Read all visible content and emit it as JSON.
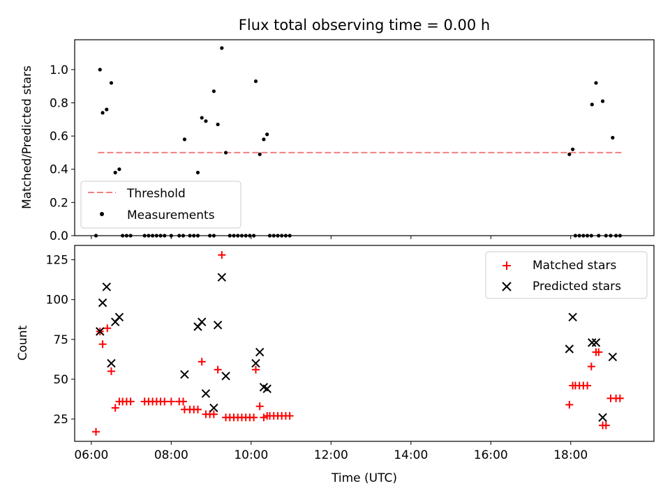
{
  "chart_data": [
    {
      "type": "scatter",
      "title": "Flux total observing time = 0.00 h",
      "xlabel": "",
      "ylabel": "Matched/Predicted stars",
      "xlim": [
        "05:35",
        "20:05"
      ],
      "ylim": [
        0,
        1.18
      ],
      "yticks": [
        0.0,
        0.2,
        0.4,
        0.6,
        0.8,
        1.0
      ],
      "ytick_labels": [
        "0.0",
        "0.2",
        "0.4",
        "0.6",
        "0.8",
        "1.0"
      ],
      "legend": {
        "placement": "lower-left",
        "entries": [
          "Threshold",
          "Measurements"
        ]
      },
      "threshold": {
        "name": "Threshold",
        "value": 0.5,
        "x_range": [
          "06:10",
          "19:20"
        ],
        "color": "#f08080",
        "style": "dashed"
      },
      "measurements": {
        "name": "Measurements",
        "color": "#000000",
        "points": [
          [
            "06:07",
            0.0
          ],
          [
            "06:13",
            1.0
          ],
          [
            "06:17",
            0.74
          ],
          [
            "06:23",
            0.76
          ],
          [
            "06:30",
            0.92
          ],
          [
            "06:36",
            0.38
          ],
          [
            "06:42",
            0.4
          ],
          [
            "06:47",
            0.0
          ],
          [
            "06:53",
            0.0
          ],
          [
            "06:59",
            0.0
          ],
          [
            "07:20",
            0.0
          ],
          [
            "07:26",
            0.0
          ],
          [
            "07:32",
            0.0
          ],
          [
            "07:38",
            0.0
          ],
          [
            "07:44",
            0.0
          ],
          [
            "07:50",
            0.0
          ],
          [
            "08:00",
            0.0
          ],
          [
            "08:12",
            0.0
          ],
          [
            "08:18",
            0.0
          ],
          [
            "08:20",
            0.58
          ],
          [
            "08:28",
            0.0
          ],
          [
            "08:34",
            0.0
          ],
          [
            "08:40",
            0.0
          ],
          [
            "08:40",
            0.38
          ],
          [
            "08:46",
            0.71
          ],
          [
            "08:52",
            0.69
          ],
          [
            "08:58",
            0.0
          ],
          [
            "09:04",
            0.0
          ],
          [
            "09:04",
            0.87
          ],
          [
            "09:10",
            0.67
          ],
          [
            "09:16",
            1.13
          ],
          [
            "09:22",
            0.5
          ],
          [
            "09:28",
            0.0
          ],
          [
            "09:34",
            0.0
          ],
          [
            "09:40",
            0.0
          ],
          [
            "09:46",
            0.0
          ],
          [
            "09:52",
            0.0
          ],
          [
            "09:58",
            0.0
          ],
          [
            "10:04",
            0.0
          ],
          [
            "10:07",
            0.93
          ],
          [
            "10:13",
            0.49
          ],
          [
            "10:19",
            0.58
          ],
          [
            "10:24",
            0.61
          ],
          [
            "10:28",
            0.0
          ],
          [
            "10:34",
            0.0
          ],
          [
            "10:40",
            0.0
          ],
          [
            "10:46",
            0.0
          ],
          [
            "10:52",
            0.0
          ],
          [
            "10:58",
            0.0
          ],
          [
            "17:58",
            0.49
          ],
          [
            "18:03",
            0.52
          ],
          [
            "18:07",
            0.0
          ],
          [
            "18:13",
            0.0
          ],
          [
            "18:19",
            0.0
          ],
          [
            "18:25",
            0.0
          ],
          [
            "18:31",
            0.0
          ],
          [
            "18:32",
            0.79
          ],
          [
            "18:38",
            0.92
          ],
          [
            "18:42",
            0.0
          ],
          [
            "18:48",
            0.81
          ],
          [
            "18:53",
            0.0
          ],
          [
            "19:00",
            0.0
          ],
          [
            "19:03",
            0.59
          ],
          [
            "19:08",
            0.0
          ],
          [
            "19:14",
            0.0
          ]
        ]
      }
    },
    {
      "type": "scatter",
      "title": "",
      "xlabel": "Time (UTC)",
      "ylabel": "Count",
      "xlim": [
        "05:35",
        "20:05"
      ],
      "ylim": [
        11,
        134
      ],
      "xticks": [
        "06:00",
        "08:00",
        "10:00",
        "12:00",
        "14:00",
        "16:00",
        "18:00"
      ],
      "yticks": [
        25,
        50,
        75,
        100,
        125
      ],
      "ytick_labels": [
        "25",
        "50",
        "75",
        "100",
        "125"
      ],
      "legend": {
        "placement": "top-right",
        "entries": [
          "Matched stars",
          "Predicted stars"
        ]
      },
      "series": [
        {
          "name": "Matched stars",
          "marker": "+",
          "color": "#ff0000",
          "points": [
            [
              "06:07",
              17
            ],
            [
              "06:13",
              80
            ],
            [
              "06:17",
              72
            ],
            [
              "06:24",
              82
            ],
            [
              "06:30",
              55
            ],
            [
              "06:36",
              32
            ],
            [
              "06:42",
              36
            ],
            [
              "06:47",
              36
            ],
            [
              "06:53",
              36
            ],
            [
              "06:59",
              36
            ],
            [
              "07:20",
              36
            ],
            [
              "07:26",
              36
            ],
            [
              "07:32",
              36
            ],
            [
              "07:38",
              36
            ],
            [
              "07:44",
              36
            ],
            [
              "07:50",
              36
            ],
            [
              "08:00",
              36
            ],
            [
              "08:12",
              36
            ],
            [
              "08:18",
              36
            ],
            [
              "08:20",
              31
            ],
            [
              "08:28",
              31
            ],
            [
              "08:34",
              31
            ],
            [
              "08:40",
              31
            ],
            [
              "08:46",
              61
            ],
            [
              "08:52",
              28
            ],
            [
              "08:58",
              28
            ],
            [
              "09:04",
              28
            ],
            [
              "09:10",
              56
            ],
            [
              "09:16",
              128
            ],
            [
              "09:22",
              26
            ],
            [
              "09:28",
              26
            ],
            [
              "09:34",
              26
            ],
            [
              "09:40",
              26
            ],
            [
              "09:46",
              26
            ],
            [
              "09:52",
              26
            ],
            [
              "09:58",
              26
            ],
            [
              "10:04",
              26
            ],
            [
              "10:07",
              56
            ],
            [
              "10:13",
              33
            ],
            [
              "10:19",
              26
            ],
            [
              "10:24",
              27
            ],
            [
              "10:28",
              27
            ],
            [
              "10:34",
              27
            ],
            [
              "10:40",
              27
            ],
            [
              "10:46",
              27
            ],
            [
              "10:52",
              27
            ],
            [
              "10:58",
              27
            ],
            [
              "17:58",
              34
            ],
            [
              "18:03",
              46
            ],
            [
              "18:07",
              46
            ],
            [
              "18:13",
              46
            ],
            [
              "18:19",
              46
            ],
            [
              "18:25",
              46
            ],
            [
              "18:31",
              58
            ],
            [
              "18:38",
              67
            ],
            [
              "18:42",
              67
            ],
            [
              "18:48",
              21
            ],
            [
              "18:53",
              21
            ],
            [
              "19:00",
              38
            ],
            [
              "19:08",
              38
            ],
            [
              "19:14",
              38
            ]
          ]
        },
        {
          "name": "Predicted stars",
          "marker": "x",
          "color": "#000000",
          "points": [
            [
              "06:13",
              80
            ],
            [
              "06:17",
              98
            ],
            [
              "06:23",
              108
            ],
            [
              "06:30",
              60
            ],
            [
              "06:36",
              86
            ],
            [
              "06:42",
              89
            ],
            [
              "08:20",
              53
            ],
            [
              "08:40",
              83
            ],
            [
              "08:46",
              86
            ],
            [
              "08:52",
              41
            ],
            [
              "09:04",
              32
            ],
            [
              "09:10",
              84
            ],
            [
              "09:16",
              114
            ],
            [
              "09:22",
              52
            ],
            [
              "10:07",
              60
            ],
            [
              "10:13",
              67
            ],
            [
              "10:19",
              45
            ],
            [
              "10:24",
              44
            ],
            [
              "17:58",
              69
            ],
            [
              "18:03",
              89
            ],
            [
              "18:32",
              73
            ],
            [
              "18:38",
              73
            ],
            [
              "18:48",
              26
            ],
            [
              "19:03",
              64
            ]
          ]
        }
      ]
    }
  ]
}
